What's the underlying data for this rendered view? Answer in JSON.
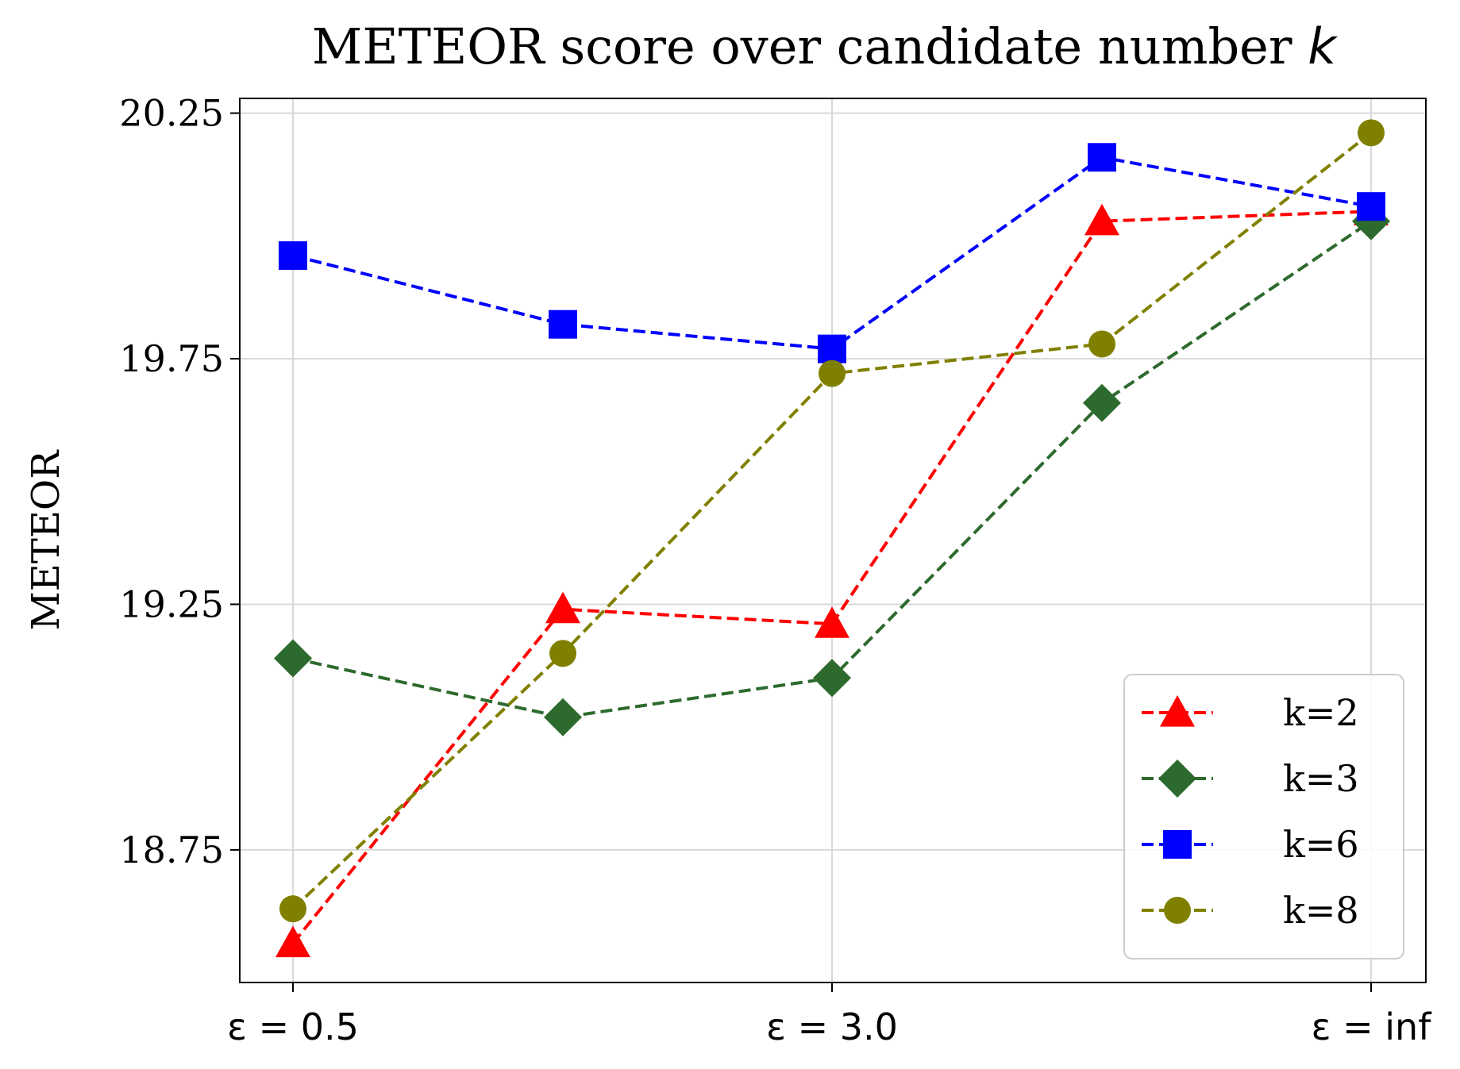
{
  "chart_data": {
    "type": "line",
    "title": "METEOR score over candidate number k",
    "title_main": "METEOR score over candidate number ",
    "title_var": "k",
    "xlabel": "",
    "ylabel": "METEOR",
    "x_tick_labels": [
      "ε = 0.5",
      "ε = 3.0",
      "ε = inf"
    ],
    "x_points": 5,
    "y_ticks": [
      "18.75",
      "19.25",
      "19.75",
      "20.25"
    ],
    "ylim": [
      18.48,
      20.28
    ],
    "grid": true,
    "legend_position": "lower-right",
    "series": [
      {
        "name": "k=2",
        "color": "#ff0000",
        "marker": "triangle",
        "values": [
          18.56,
          19.24,
          19.21,
          20.03,
          20.05
        ]
      },
      {
        "name": "k=3",
        "color": "#2d6a2d",
        "marker": "diamond",
        "values": [
          19.14,
          19.02,
          19.1,
          19.66,
          20.03
        ]
      },
      {
        "name": "k=6",
        "color": "#0000ff",
        "marker": "square",
        "values": [
          19.96,
          19.82,
          19.77,
          20.16,
          20.06
        ]
      },
      {
        "name": "k=8",
        "color": "#808000",
        "marker": "circle",
        "values": [
          18.63,
          19.15,
          19.72,
          19.78,
          20.21
        ]
      }
    ]
  }
}
